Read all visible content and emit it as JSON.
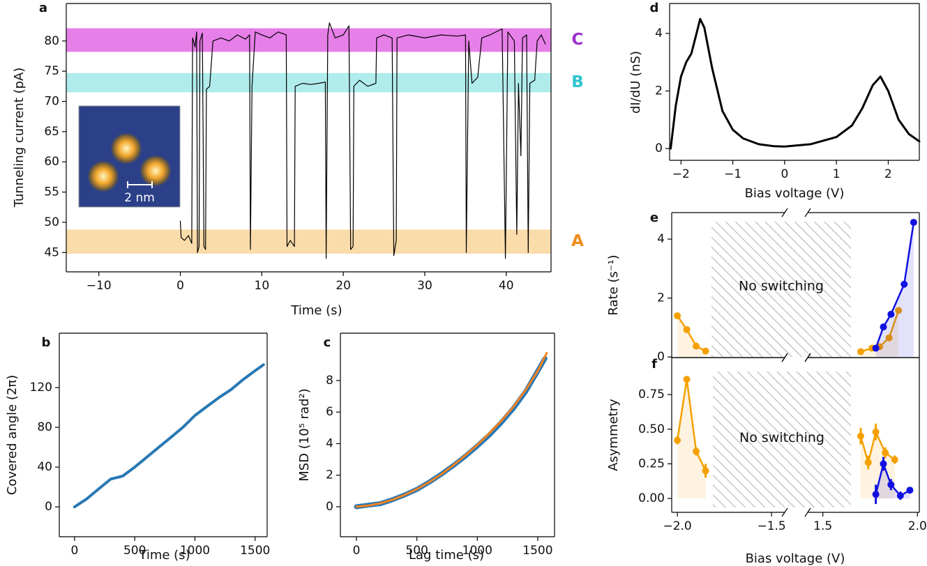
{
  "chart_data": [
    {
      "type": "line",
      "panel": "a",
      "xlabel": "Time (s)",
      "ylabel": "Tunneling current (pA)",
      "xlim": [
        -14,
        45.5
      ],
      "ylim": [
        41.8,
        86.2
      ],
      "xticks": [
        {
          "value": -10,
          "label": "−10"
        },
        0,
        10,
        20,
        30,
        40
      ],
      "yticks": [
        45,
        50,
        55,
        60,
        65,
        70,
        75,
        80
      ],
      "bands": [
        {
          "label": "C",
          "color": "#e77fe8",
          "label_color": "#9b2fc9",
          "range": [
            78.2,
            82.1
          ]
        },
        {
          "label": "B",
          "color": "#b0ecec",
          "label_color": "#2ec4d0",
          "range": [
            71.5,
            74.7
          ]
        },
        {
          "label": "A",
          "color": "#fadcaa",
          "label_color": "#f08c1a",
          "range": [
            44.8,
            48.8
          ]
        }
      ],
      "inset_scale": "2 nm",
      "series": [
        {
          "color": "#000000",
          "width": 1.2,
          "x": [
            0,
            0.1,
            0.5,
            1.0,
            1.4,
            1.5,
            1.8,
            2.0,
            2.1,
            2.3,
            2.4,
            2.7,
            2.9,
            3.1,
            3.2,
            3.6,
            4.0,
            5,
            6,
            7,
            8,
            8.5,
            8.6,
            8.8,
            9.2,
            10,
            11,
            12,
            13,
            13.1,
            13.5,
            14,
            14.1,
            15,
            16,
            17,
            17.8,
            17.9,
            18.1,
            18.3,
            19,
            20,
            20.7,
            20.9,
            21.2,
            21.3,
            22,
            23,
            24,
            24.1,
            25,
            26,
            26.2,
            26.5,
            26.6,
            28,
            30,
            32,
            34,
            35,
            35.1,
            35.4,
            35.8,
            36.5,
            37,
            38,
            39.5,
            39.9,
            40.2,
            41,
            41.3,
            41.5,
            41.8,
            42,
            42.5,
            42.7,
            42.9,
            43.5,
            43.8,
            44.3,
            44.8
          ],
          "values": [
            50.2,
            47.5,
            47,
            47.8,
            46.5,
            80.5,
            79,
            81.5,
            45,
            46,
            80,
            81.3,
            46,
            45.5,
            72,
            72.5,
            80,
            80.5,
            80,
            81,
            80.3,
            81,
            45.5,
            72.5,
            81.5,
            81,
            80.5,
            81.5,
            81,
            46,
            47,
            46,
            72.5,
            73,
            72.8,
            73,
            73.2,
            44,
            81,
            83,
            80.5,
            81,
            82.5,
            45.5,
            46,
            72.5,
            73.5,
            72.5,
            73,
            80.5,
            81,
            80.5,
            44.5,
            47,
            80.5,
            81,
            80.5,
            81,
            80.8,
            81,
            45,
            80,
            73,
            74,
            80.5,
            81,
            82,
            44,
            81.5,
            80,
            48,
            73,
            61,
            80.5,
            81,
            45,
            73,
            73.5,
            80,
            81,
            79.5
          ]
        }
      ]
    },
    {
      "type": "line",
      "panel": "b",
      "xlabel": "Time (s)",
      "ylabel": "Covered angle (2π)",
      "xlim": [
        -127,
        1600
      ],
      "ylim": [
        -30,
        174.7
      ],
      "xticks": [
        0,
        500,
        1000,
        1500
      ],
      "yticks": [
        0,
        40,
        80,
        120
      ],
      "series": [
        {
          "color": "#2878b4",
          "width": 4,
          "x": [
            0,
            100,
            200,
            300,
            400,
            500,
            600,
            700,
            800,
            900,
            1000,
            1100,
            1200,
            1300,
            1400,
            1500,
            1570
          ],
          "values": [
            0,
            8,
            18,
            28,
            31,
            40,
            50,
            60,
            70,
            80,
            92,
            101,
            110,
            118,
            128,
            137,
            143
          ]
        }
      ]
    },
    {
      "type": "line",
      "panel": "c",
      "xlabel": "Lag time (s)",
      "ylabel": "MSD (10⁵ rad²)",
      "xlim": [
        -133,
        1639
      ],
      "ylim": [
        -1.9,
        11.0
      ],
      "xticks": [
        0,
        500,
        1000,
        1500
      ],
      "yticks": [
        0,
        2,
        4,
        6,
        8
      ],
      "series": [
        {
          "color": "#2878b4",
          "width": 7,
          "x": [
            0,
            100,
            200,
            300,
            400,
            500,
            600,
            700,
            800,
            900,
            1000,
            1100,
            1200,
            1300,
            1400,
            1500,
            1560
          ],
          "values": [
            0,
            0.1,
            0.2,
            0.45,
            0.75,
            1.1,
            1.55,
            2.05,
            2.6,
            3.2,
            3.85,
            4.55,
            5.35,
            6.25,
            7.3,
            8.6,
            9.4
          ]
        },
        {
          "color": "#f5821f",
          "width": 3,
          "x": [
            0,
            100,
            200,
            300,
            400,
            500,
            600,
            700,
            800,
            900,
            1000,
            1100,
            1200,
            1300,
            1400,
            1500,
            1575
          ],
          "values": [
            0,
            0.08,
            0.22,
            0.45,
            0.75,
            1.12,
            1.55,
            2.05,
            2.62,
            3.25,
            3.92,
            4.65,
            5.45,
            6.35,
            7.4,
            8.6,
            9.75
          ]
        }
      ]
    },
    {
      "type": "line",
      "panel": "d",
      "xlabel": "Bias voltage (V)",
      "ylabel": "dI/dU (nS)",
      "xlim": [
        -2.22,
        2.6
      ],
      "ylim": [
        -0.41,
        5.04
      ],
      "xticks": [
        {
          "value": -2,
          "label": "−2"
        },
        {
          "value": -1,
          "label": "−1"
        },
        0,
        1,
        2
      ],
      "yticks": [
        0,
        2,
        4
      ],
      "series": [
        {
          "color": "#000000",
          "width": 3,
          "x": [
            -2.2,
            -2.1,
            -2.0,
            -1.9,
            -1.8,
            -1.7,
            -1.63,
            -1.55,
            -1.4,
            -1.2,
            -1.0,
            -0.8,
            -0.5,
            -0.2,
            0,
            0.5,
            1.0,
            1.3,
            1.5,
            1.7,
            1.85,
            2.0,
            2.2,
            2.4,
            2.6
          ],
          "values": [
            0,
            1.5,
            2.5,
            3.0,
            3.3,
            4.0,
            4.5,
            4.2,
            2.8,
            1.3,
            0.65,
            0.35,
            0.15,
            0.08,
            0.07,
            0.15,
            0.4,
            0.8,
            1.4,
            2.2,
            2.5,
            2.0,
            1.0,
            0.5,
            0.25
          ]
        }
      ]
    },
    {
      "type": "line",
      "panel": "e",
      "ylabel": "Rate (s⁻¹)",
      "annotation": "No switching",
      "xlim": [
        [
          -2.03,
          -1.43
        ],
        [
          1.42,
          2.01
        ]
      ],
      "ylim": [
        -0.02,
        4.9
      ],
      "yticks": [
        0,
        2,
        4
      ],
      "markers": true,
      "fill_under": true,
      "series": [
        {
          "color": "#f5a000",
          "width": 2.5,
          "x": [
            -2.0,
            -1.95,
            -1.9,
            -1.85
          ],
          "values": [
            1.4,
            0.93,
            0.37,
            0.2
          ]
        },
        {
          "color": "#f5a000",
          "width": 2.5,
          "x": [
            1.7,
            1.76,
            1.8,
            1.85,
            1.9
          ],
          "values": [
            0.18,
            0.3,
            0.35,
            0.65,
            1.58
          ]
        },
        {
          "color": "#1010e0",
          "width": 2.5,
          "x": [
            1.78,
            1.82,
            1.86,
            1.93,
            1.98
          ],
          "values": [
            0.3,
            1.02,
            1.45,
            2.47,
            4.57
          ]
        }
      ]
    },
    {
      "type": "line",
      "panel": "f",
      "xlabel": "Bias voltage (V)",
      "ylabel": "Asymmetry",
      "annotation": "No switching",
      "xlim": [
        [
          -2.03,
          -1.43
        ],
        [
          1.42,
          2.01
        ]
      ],
      "ylim": [
        -0.1,
        1.017
      ],
      "xticks": [
        {
          "value": -2,
          "label": "−2.0"
        },
        {
          "value": -1.5,
          "label": "−1.5"
        },
        1.5,
        {
          "value": 2,
          "label": "2.0"
        }
      ],
      "yticks": [
        {
          "value": 0,
          "label": "0.00"
        },
        {
          "value": 0.25,
          "label": "0.25"
        },
        {
          "value": 0.5,
          "label": "0.50"
        },
        {
          "value": 0.75,
          "label": "0.75"
        }
      ],
      "markers": true,
      "fill_under": true,
      "series": [
        {
          "color": "#f5a000",
          "width": 2.5,
          "x": [
            -2.0,
            -1.95,
            -1.9,
            -1.85
          ],
          "values": [
            0.42,
            0.86,
            0.34,
            0.2
          ],
          "errors": [
            0.03,
            0.02,
            0.03,
            0.05
          ]
        },
        {
          "color": "#f5a000",
          "width": 2.5,
          "x": [
            1.7,
            1.74,
            1.78,
            1.83,
            1.88
          ],
          "values": [
            0.45,
            0.26,
            0.48,
            0.33,
            0.28
          ],
          "errors": [
            0.06,
            0.05,
            0.06,
            0.04,
            0.03
          ]
        },
        {
          "color": "#1010e0",
          "width": 2.5,
          "x": [
            1.78,
            1.82,
            1.86,
            1.91,
            1.96
          ],
          "values": [
            0.03,
            0.25,
            0.1,
            0.02,
            0.06
          ],
          "errors": [
            0.07,
            0.05,
            0.04,
            0.03,
            0.02
          ]
        }
      ]
    }
  ]
}
